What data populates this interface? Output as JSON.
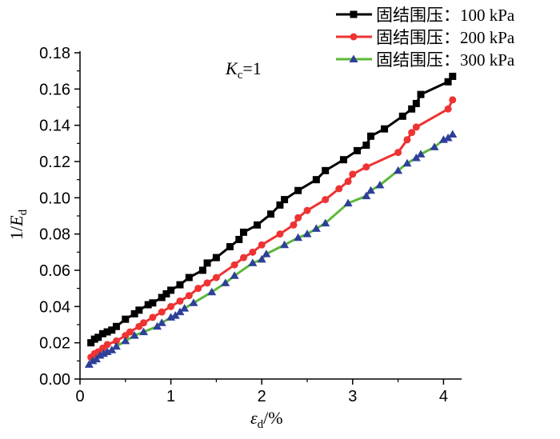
{
  "chart_data": {
    "type": "line",
    "title": "",
    "annotation": {
      "italic": "K",
      "sub": "c",
      "rest": "=1"
    },
    "xlabel": {
      "italic": "ε",
      "sub": "d",
      "rest": "/%"
    },
    "ylabel": {
      "pre": "1/",
      "italic": "E",
      "sub": "d"
    },
    "xlim": [
      0,
      4.2
    ],
    "ylim": [
      0,
      0.18
    ],
    "xticks": [
      "0",
      "1",
      "2",
      "3",
      "4"
    ],
    "yticks": [
      "0.00",
      "0.02",
      "0.04",
      "0.06",
      "0.08",
      "0.10",
      "0.12",
      "0.14",
      "0.16",
      "0.18"
    ],
    "legend_position": "top-right",
    "series": [
      {
        "name": "固结围压：100 kPa",
        "color": "#000000",
        "marker": "square",
        "x": [
          0.12,
          0.16,
          0.2,
          0.25,
          0.3,
          0.35,
          0.4,
          0.5,
          0.6,
          0.65,
          0.75,
          0.8,
          0.9,
          0.95,
          1.0,
          1.1,
          1.2,
          1.35,
          1.4,
          1.5,
          1.65,
          1.75,
          1.8,
          1.95,
          2.1,
          2.2,
          2.25,
          2.4,
          2.6,
          2.7,
          2.9,
          3.05,
          3.15,
          3.2,
          3.35,
          3.55,
          3.65,
          3.7,
          3.75,
          4.05,
          4.1
        ],
        "y": [
          0.02,
          0.022,
          0.023,
          0.025,
          0.026,
          0.027,
          0.029,
          0.033,
          0.036,
          0.038,
          0.041,
          0.042,
          0.045,
          0.047,
          0.049,
          0.052,
          0.056,
          0.06,
          0.064,
          0.067,
          0.073,
          0.077,
          0.081,
          0.085,
          0.091,
          0.096,
          0.099,
          0.104,
          0.11,
          0.115,
          0.121,
          0.126,
          0.129,
          0.134,
          0.138,
          0.145,
          0.149,
          0.152,
          0.157,
          0.164,
          0.167
        ]
      },
      {
        "name": "固结围压：200 kPa",
        "color": "#ee3333",
        "marker": "circle",
        "x": [
          0.12,
          0.16,
          0.2,
          0.25,
          0.3,
          0.4,
          0.5,
          0.55,
          0.65,
          0.7,
          0.8,
          0.9,
          1.0,
          1.1,
          1.2,
          1.3,
          1.4,
          1.5,
          1.7,
          1.8,
          1.9,
          2.0,
          2.2,
          2.35,
          2.4,
          2.5,
          2.7,
          2.85,
          2.95,
          3.0,
          3.15,
          3.5,
          3.6,
          3.65,
          3.7,
          4.05,
          4.1
        ],
        "y": [
          0.012,
          0.014,
          0.015,
          0.017,
          0.019,
          0.021,
          0.024,
          0.026,
          0.029,
          0.031,
          0.034,
          0.037,
          0.04,
          0.043,
          0.046,
          0.05,
          0.053,
          0.056,
          0.063,
          0.067,
          0.07,
          0.074,
          0.08,
          0.085,
          0.089,
          0.093,
          0.099,
          0.105,
          0.109,
          0.113,
          0.117,
          0.125,
          0.132,
          0.136,
          0.139,
          0.149,
          0.154
        ]
      },
      {
        "name": "固结围压：300 kPa",
        "color": "#5cb83a",
        "marker": "triangle",
        "marker_color": "#2e3f99",
        "x": [
          0.1,
          0.14,
          0.18,
          0.22,
          0.26,
          0.3,
          0.35,
          0.4,
          0.5,
          0.6,
          0.7,
          0.85,
          0.9,
          1.0,
          1.05,
          1.1,
          1.15,
          1.25,
          1.45,
          1.6,
          1.7,
          1.9,
          2.0,
          2.05,
          2.25,
          2.4,
          2.5,
          2.6,
          2.7,
          2.95,
          3.15,
          3.2,
          3.3,
          3.5,
          3.6,
          3.7,
          3.75,
          3.9,
          4.0,
          4.05,
          4.1
        ],
        "y": [
          0.008,
          0.01,
          0.011,
          0.013,
          0.014,
          0.015,
          0.016,
          0.018,
          0.021,
          0.024,
          0.026,
          0.029,
          0.031,
          0.034,
          0.035,
          0.037,
          0.039,
          0.042,
          0.048,
          0.053,
          0.057,
          0.064,
          0.066,
          0.069,
          0.074,
          0.078,
          0.08,
          0.083,
          0.086,
          0.097,
          0.101,
          0.104,
          0.107,
          0.115,
          0.119,
          0.122,
          0.124,
          0.128,
          0.132,
          0.133,
          0.135
        ]
      }
    ]
  }
}
